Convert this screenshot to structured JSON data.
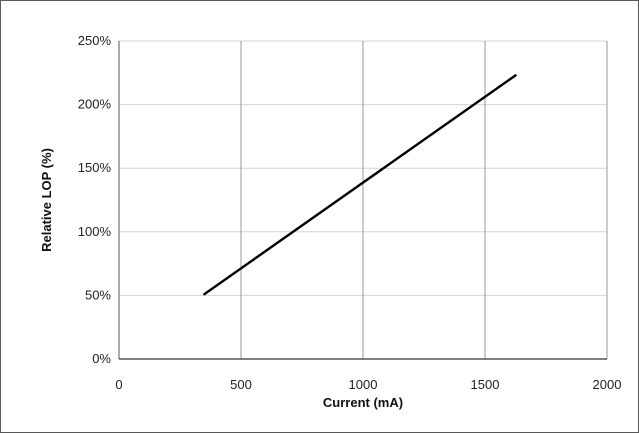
{
  "chart_data": {
    "type": "line",
    "title": "",
    "xlabel": "Current (mA)",
    "ylabel": "Relative LOP (%)",
    "xlim": [
      0,
      2000
    ],
    "ylim": [
      0,
      250
    ],
    "x_ticks": [
      "0",
      "500",
      "1000",
      "1500",
      "2000"
    ],
    "y_ticks": [
      "0%",
      "50%",
      "100%",
      "150%",
      "200%",
      "250%"
    ],
    "grid": true,
    "legend": "none",
    "series": [
      {
        "color": "#000000",
        "x": [
          350,
          1625
        ],
        "y": [
          51,
          223
        ]
      }
    ]
  }
}
